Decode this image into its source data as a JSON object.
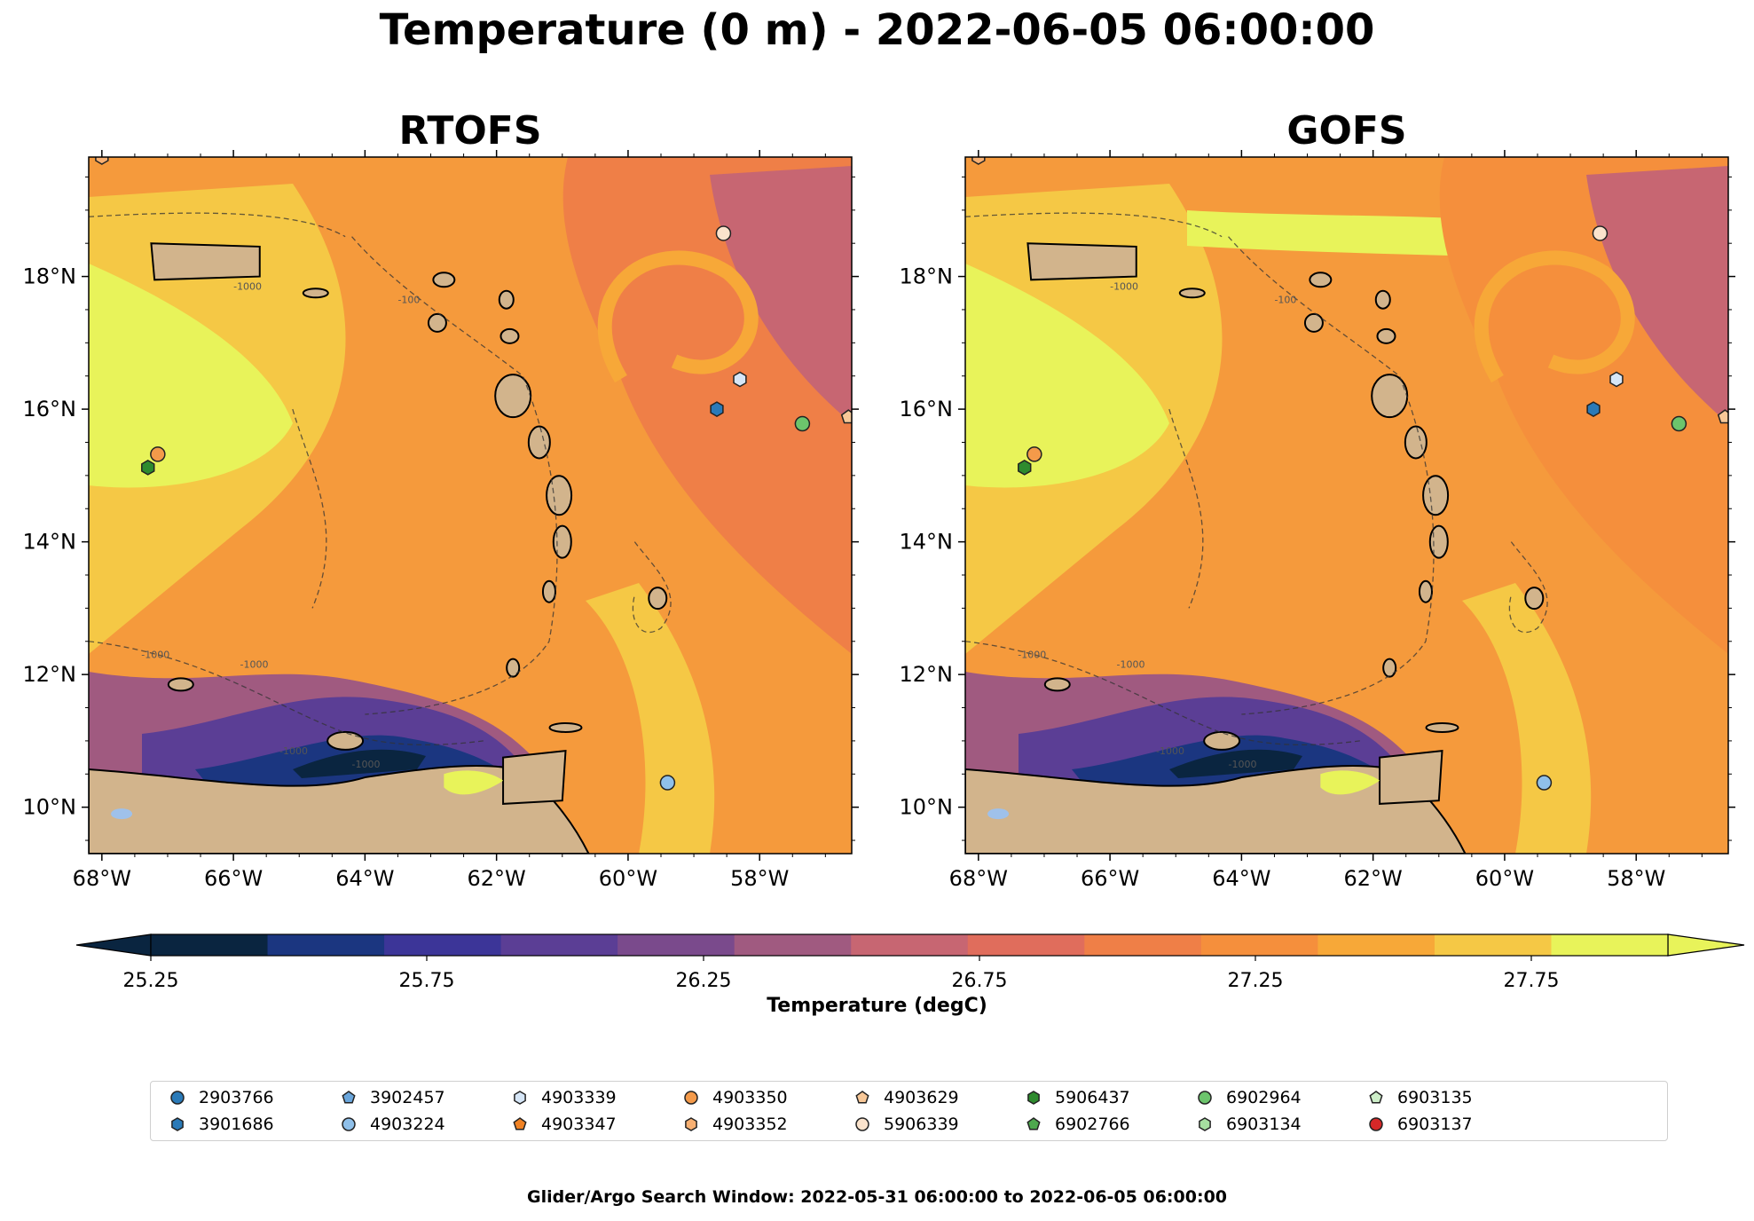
{
  "title": "Temperature (0 m) - 2022-06-05 06:00:00",
  "footer": "Glider/Argo Search Window: 2022-05-31 06:00:00 to 2022-06-05 06:00:00",
  "colorbar": {
    "label": "Temperature (degC)",
    "ticks": [
      "25.25",
      "25.75",
      "26.25",
      "26.75",
      "27.25",
      "27.75"
    ],
    "colors": [
      "#0a2540",
      "#1b3680",
      "#3c3598",
      "#5b3e95",
      "#7a4a8c",
      "#a05a80",
      "#c76672",
      "#e06d5c",
      "#ef7f47",
      "#f58f3c",
      "#f7a838",
      "#f5c845",
      "#e8f35a"
    ]
  },
  "map_colors": {
    "land": "#d2b48c",
    "water_body": "#9fc1ea",
    "ocean_base": "#f59a3c"
  },
  "panels": [
    {
      "id": "rtofs",
      "title": "RTOFS"
    },
    {
      "id": "gofs",
      "title": "GOFS"
    }
  ],
  "axes": {
    "x_ticks": [
      "68°W",
      "66°W",
      "64°W",
      "62°W",
      "60°W",
      "58°W"
    ],
    "y_ticks": [
      "10°N",
      "12°N",
      "14°N",
      "16°N",
      "18°N"
    ],
    "lon_range": [
      -68.2,
      -56.6
    ],
    "lat_range": [
      9.3,
      19.8
    ],
    "contour_labels": [
      "-1000",
      "-100"
    ]
  },
  "legend": [
    {
      "id": "2903766",
      "marker": "circle",
      "color": "#2a7ab8"
    },
    {
      "id": "3901686",
      "marker": "hexagon",
      "color": "#2a7ab8"
    },
    {
      "id": "3902457",
      "marker": "pentagon",
      "color": "#6aa6dc"
    },
    {
      "id": "4903224",
      "marker": "circle",
      "color": "#8fc0ea"
    },
    {
      "id": "4903339",
      "marker": "hexagon",
      "color": "#d6e6f7"
    },
    {
      "id": "4903347",
      "marker": "pentagon",
      "color": "#f08224"
    },
    {
      "id": "4903350",
      "marker": "circle",
      "color": "#f49a4a"
    },
    {
      "id": "4903352",
      "marker": "hexagon",
      "color": "#f8b072"
    },
    {
      "id": "4903629",
      "marker": "pentagon",
      "color": "#f8c898"
    },
    {
      "id": "5906339",
      "marker": "circle",
      "color": "#fbe3cc"
    },
    {
      "id": "5906437",
      "marker": "hexagon",
      "color": "#2e8b2e"
    },
    {
      "id": "6902766",
      "marker": "pentagon",
      "color": "#4ea84e"
    },
    {
      "id": "6902964",
      "marker": "circle",
      "color": "#6cc46c"
    },
    {
      "id": "6903134",
      "marker": "hexagon",
      "color": "#a6e0a0"
    },
    {
      "id": "6903135",
      "marker": "pentagon",
      "color": "#cdeec8"
    },
    {
      "id": "6903137",
      "marker": "circle",
      "color": "#d62828"
    }
  ],
  "floats_on_map": [
    {
      "id": "4903350",
      "lon": -67.15,
      "lat": 15.32
    },
    {
      "id": "5906437",
      "lon": -67.3,
      "lat": 15.12
    },
    {
      "id": "5906339",
      "lon": -58.55,
      "lat": 18.65
    },
    {
      "id": "4903339",
      "lon": -58.3,
      "lat": 16.45
    },
    {
      "id": "3901686",
      "lon": -58.65,
      "lat": 16.0
    },
    {
      "id": "6902964",
      "lon": -57.35,
      "lat": 15.78
    },
    {
      "id": "4903224",
      "lon": -59.4,
      "lat": 10.37
    },
    {
      "id": "4903352",
      "lon": -68.0,
      "lat": 19.8
    },
    {
      "id": "4903629",
      "lon": -56.65,
      "lat": 15.88
    }
  ]
}
